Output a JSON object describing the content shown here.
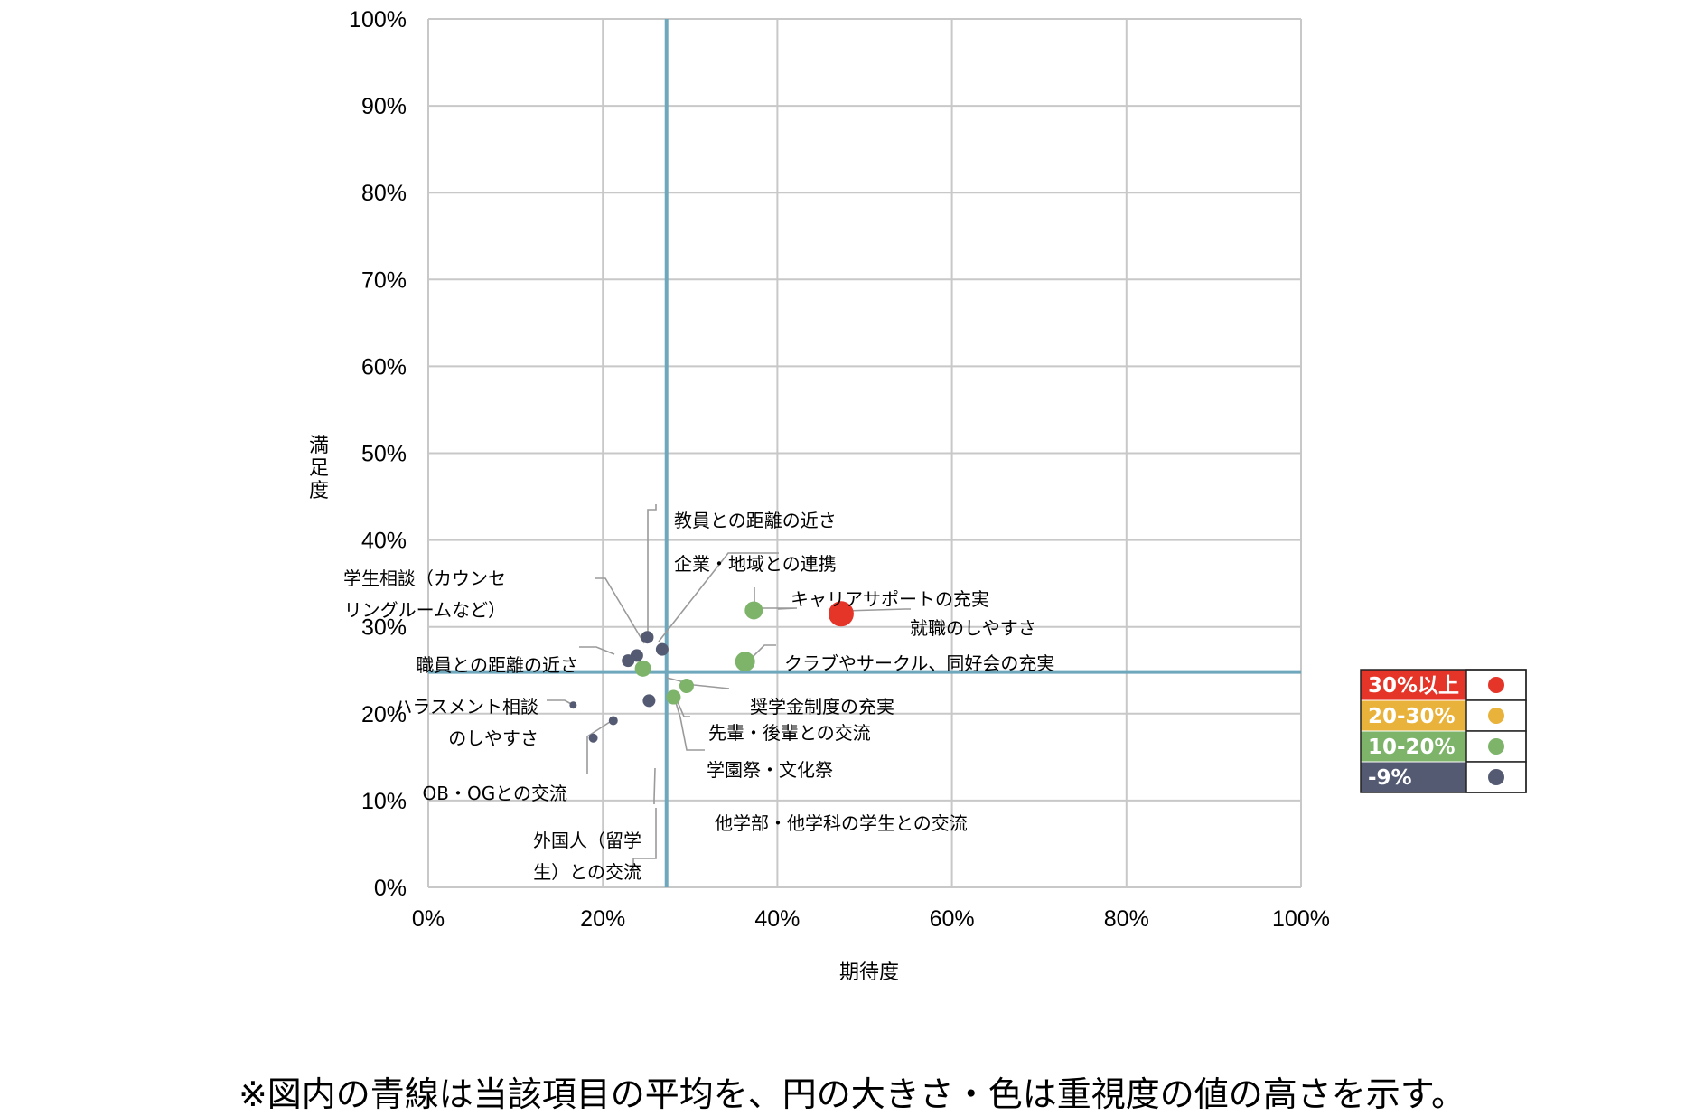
{
  "chart_data": {
    "type": "scatter",
    "title": "",
    "xlabel": "期待度",
    "ylabel": "満足度",
    "xlim": [
      0,
      100
    ],
    "ylim": [
      0,
      100
    ],
    "x_ticks": [
      "0%",
      "20%",
      "40%",
      "60%",
      "80%",
      "100%"
    ],
    "y_ticks": [
      "0%",
      "10%",
      "20%",
      "30%",
      "40%",
      "50%",
      "60%",
      "70%",
      "80%",
      "90%",
      "100%"
    ],
    "grid": true,
    "average_lines": {
      "x": 27.3,
      "y": 24.8,
      "color": "#6fa8bd"
    },
    "colors": {
      "red": "#e53428",
      "yellow": "#e9b23a",
      "green": "#7db46a",
      "navy": "#545a72"
    },
    "points": [
      {
        "label": "就職のしやすさ",
        "x": 47.3,
        "y": 31.5,
        "group": "red",
        "size": 14
      },
      {
        "label": "キャリアサポートの充実",
        "x": 37.3,
        "y": 31.9,
        "group": "green",
        "size": 10
      },
      {
        "label": "クラブやサークル、同好会の充実",
        "x": 36.3,
        "y": 26.0,
        "group": "green",
        "size": 11
      },
      {
        "label": "学生相談（カウンセリングルームなど）",
        "x": 24.6,
        "y": 25.2,
        "group": "green",
        "size": 9
      },
      {
        "label": "先輩・後輩との交流",
        "x": 28.1,
        "y": 21.9,
        "group": "green",
        "size": 8
      },
      {
        "label": "学園祭・文化祭",
        "x": 29.6,
        "y": 23.2,
        "group": "green",
        "size": 8
      },
      {
        "label": "教員との距離の近さ",
        "x": 25.1,
        "y": 28.8,
        "group": "navy",
        "size": 7
      },
      {
        "label": "企業・地域との連携",
        "x": 26.8,
        "y": 27.4,
        "group": "navy",
        "size": 7
      },
      {
        "label": "職員との距離の近さ",
        "x": 23.9,
        "y": 26.7,
        "group": "navy",
        "size": 7
      },
      {
        "label": "奨学金制度の充実",
        "x": 22.9,
        "y": 26.1,
        "group": "navy",
        "size": 7
      },
      {
        "label": "他学部・他学科の学生との交流",
        "x": 25.3,
        "y": 21.5,
        "group": "navy",
        "size": 7
      },
      {
        "label": "ハラスメント相談のしやすさ",
        "x": 16.6,
        "y": 21.0,
        "group": "navy",
        "size": 4
      },
      {
        "label": "OB・OGとの交流",
        "x": 21.2,
        "y": 19.2,
        "group": "navy",
        "size": 5
      },
      {
        "label": "外国人（留学生）との交流",
        "x": 18.9,
        "y": 17.2,
        "group": "navy",
        "size": 5
      }
    ],
    "labels": [
      {
        "lines": [
          "教員との距離の近さ"
        ]
      },
      {
        "lines": [
          "企業・地域との連携"
        ]
      },
      {
        "lines": [
          "学生相談（カウンセ",
          "リングルームなど）"
        ]
      },
      {
        "lines": [
          "キャリアサポートの充実"
        ]
      },
      {
        "lines": [
          "就職のしやすさ"
        ]
      },
      {
        "lines": [
          "職員との距離の近さ"
        ]
      },
      {
        "lines": [
          "クラブやサークル、同好会の充実"
        ]
      },
      {
        "lines": [
          "ハラスメント相談",
          "のしやすさ"
        ]
      },
      {
        "lines": [
          "奨学金制度の充実"
        ]
      },
      {
        "lines": [
          "先輩・後輩との交流"
        ]
      },
      {
        "lines": [
          "学園祭・文化祭"
        ]
      },
      {
        "lines": [
          "OB・OGとの交流"
        ]
      },
      {
        "lines": [
          "他学部・他学科の学生との交流"
        ]
      },
      {
        "lines": [
          "外国人（留学",
          "生）との交流"
        ]
      }
    ],
    "legend": {
      "placement": "right",
      "items": [
        {
          "label": "30%以上",
          "color": "#e53428",
          "text_bg": "#e53428"
        },
        {
          "label": "20-30%",
          "color": "#e9b23a",
          "text_bg": "#e9b23a"
        },
        {
          "label": "10-20%",
          "color": "#7db46a",
          "text_bg": "#7db46a"
        },
        {
          "label": "-9%",
          "color": "#545a72",
          "text_bg": "#545a72"
        }
      ]
    }
  },
  "note": "※図内の青線は当該項目の平均を、円の大きさ・色は重視度の値の高さを示す。"
}
